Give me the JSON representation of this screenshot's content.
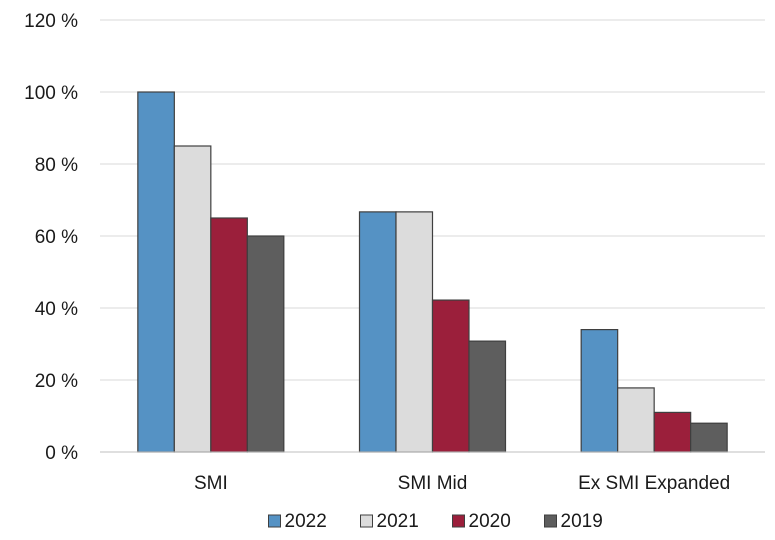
{
  "chart_data": {
    "type": "bar",
    "title": "",
    "xlabel": "",
    "ylabel": "",
    "categories": [
      "SMI",
      "SMI Mid",
      "Ex SMI Expanded"
    ],
    "series": [
      {
        "name": "2022",
        "color": "#5592C4",
        "values": [
          100,
          66.7,
          34
        ]
      },
      {
        "name": "2021",
        "color": "#DCDCDC",
        "values": [
          85,
          66.7,
          17.8
        ]
      },
      {
        "name": "2020",
        "color": "#9B1F3B",
        "values": [
          65,
          42.2,
          11
        ]
      },
      {
        "name": "2019",
        "color": "#5E5E5E",
        "values": [
          60,
          30.8,
          8
        ]
      }
    ],
    "ylim": [
      0,
      120
    ],
    "yticks": [
      0,
      20,
      40,
      60,
      80,
      100,
      120
    ],
    "ytick_suffix": " %",
    "grid": true,
    "legend_position": "bottom"
  }
}
